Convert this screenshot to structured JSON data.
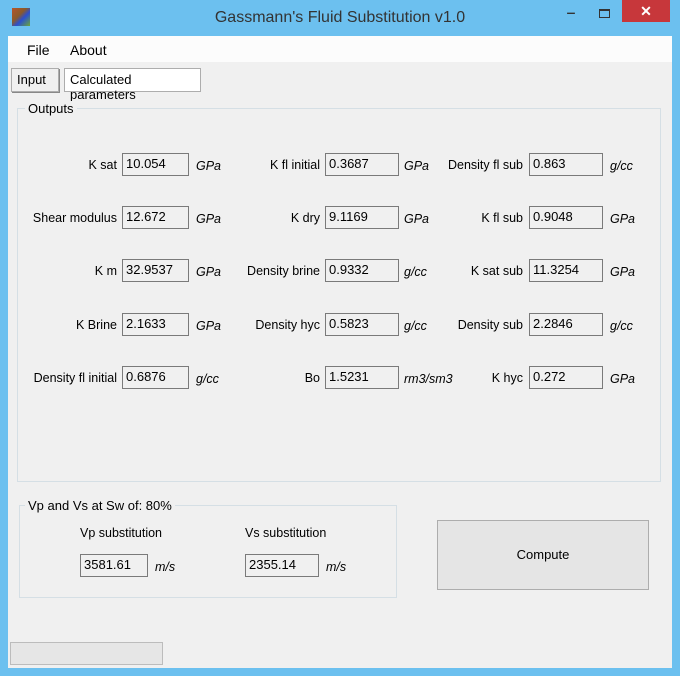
{
  "window": {
    "title": "Gassmann's Fluid Substitution v1.0",
    "minimize": "‒",
    "close": "✕"
  },
  "menu": {
    "items": [
      "File",
      "About"
    ]
  },
  "tabs": [
    {
      "label": "Input",
      "active": false
    },
    {
      "label": "Calculated parameters",
      "active": true
    }
  ],
  "outputs": {
    "title": "Outputs",
    "fields": [
      {
        "label": "K sat",
        "value": "10.054",
        "unit": "GPa"
      },
      {
        "label": "K fl initial",
        "value": "0.3687",
        "unit": "GPa"
      },
      {
        "label": "Density fl sub",
        "value": "0.863",
        "unit": "g/cc"
      },
      {
        "label": "Shear modulus",
        "value": "12.672",
        "unit": "GPa"
      },
      {
        "label": "K dry",
        "value": "9.1169",
        "unit": "GPa"
      },
      {
        "label": "K fl sub",
        "value": "0.9048",
        "unit": "GPa"
      },
      {
        "label": "K m",
        "value": "32.9537",
        "unit": "GPa"
      },
      {
        "label": "Density brine",
        "value": "0.9332",
        "unit": "g/cc"
      },
      {
        "label": "K sat sub",
        "value": "11.3254",
        "unit": "GPa"
      },
      {
        "label": "K Brine",
        "value": "2.1633",
        "unit": "GPa"
      },
      {
        "label": "Density hyc",
        "value": "0.5823",
        "unit": "g/cc"
      },
      {
        "label": "Density sub",
        "value": "2.2846",
        "unit": "g/cc"
      },
      {
        "label": "Density fl initial",
        "value": "0.6876",
        "unit": "g/cc"
      },
      {
        "label": "Bo",
        "value": "1.5231",
        "unit": "rm3/sm3"
      },
      {
        "label": "K hyc",
        "value": "0.272",
        "unit": "GPa"
      }
    ]
  },
  "velocities": {
    "title": "Vp and Vs at Sw of: 80%",
    "vp": {
      "label": "Vp substitution",
      "value": "3581.61",
      "unit": "m/s"
    },
    "vs": {
      "label": "Vs substitution",
      "value": "2355.14",
      "unit": "m/s"
    }
  },
  "compute_label": "Compute"
}
